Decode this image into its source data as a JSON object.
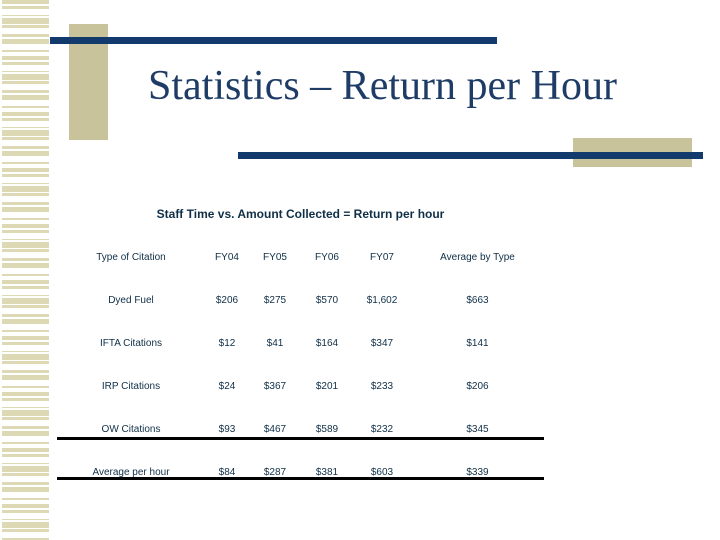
{
  "slide": {
    "title": "Statistics – Return per Hour",
    "subtitle": "Staff Time vs. Amount Collected = Return per hour"
  },
  "table": {
    "columns": [
      "Type of Citation",
      "FY04",
      "FY05",
      "FY06",
      "FY07",
      "Average by Type"
    ],
    "rows": [
      {
        "label": "Dyed Fuel",
        "values": [
          "$206",
          "$275",
          "$570",
          "$1,602",
          "$663"
        ]
      },
      {
        "label": "IFTA Citations",
        "values": [
          "$12",
          "$41",
          "$164",
          "$347",
          "$141"
        ]
      },
      {
        "label": "IRP Citations",
        "values": [
          "$24",
          "$367",
          "$201",
          "$233",
          "$206"
        ]
      },
      {
        "label": "OW Citations",
        "values": [
          "$93",
          "$467",
          "$589",
          "$232",
          "$345"
        ]
      },
      {
        "label": "Average per hour",
        "values": [
          "$84",
          "$287",
          "$381",
          "$603",
          "$339"
        ]
      }
    ]
  },
  "colors": {
    "navy_bar": "#123a6c",
    "title_text": "#1e3c66",
    "table_text": "#0f2f47",
    "tan_accent": "#c8c39b",
    "stripe_tan": "#ddd9b5",
    "separator": "#000000"
  }
}
